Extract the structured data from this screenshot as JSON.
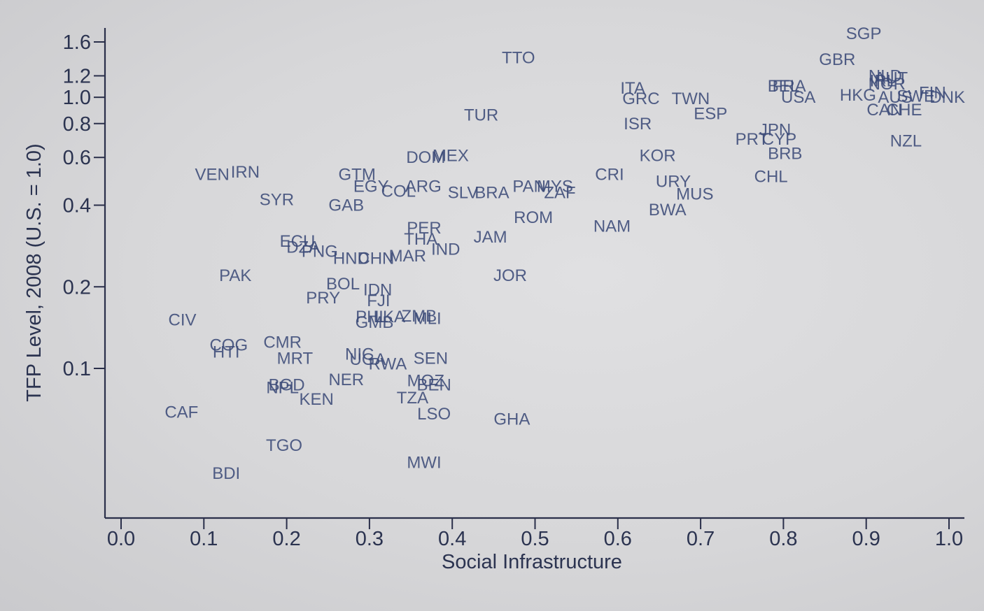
{
  "chart_data": {
    "type": "scatter",
    "xlabel": "Social Infrastructure",
    "ylabel": "TFP Level, 2008 (U.S. = 1.0)",
    "xlim": [
      -0.02,
      1.02
    ],
    "ylim": [
      0.034,
      1.9
    ],
    "y_scale": "log",
    "x_ticks": [
      "0.0",
      "0.1",
      "0.2",
      "0.3",
      "0.4",
      "0.5",
      "0.6",
      "0.7",
      "0.8",
      "0.9",
      "1.0"
    ],
    "y_ticks": [
      "0.1",
      "0.2",
      "0.4",
      "0.6",
      "0.8",
      "1.0",
      "1.2",
      "1.6"
    ],
    "grid": false,
    "points": [
      {
        "label": "SGP",
        "x": 0.897,
        "y": 1.72
      },
      {
        "label": "GBR",
        "x": 0.865,
        "y": 1.38
      },
      {
        "label": "NLD",
        "x": 0.923,
        "y": 1.2
      },
      {
        "label": "AUT",
        "x": 0.93,
        "y": 1.18
      },
      {
        "label": "IRL",
        "x": 0.92,
        "y": 1.15
      },
      {
        "label": "NOR",
        "x": 0.925,
        "y": 1.12
      },
      {
        "label": "BEL",
        "x": 0.8,
        "y": 1.1
      },
      {
        "label": "FRA",
        "x": 0.807,
        "y": 1.1
      },
      {
        "label": "USA",
        "x": 0.818,
        "y": 1.0
      },
      {
        "label": "HKG",
        "x": 0.89,
        "y": 1.02
      },
      {
        "label": "AUS",
        "x": 0.935,
        "y": 1.0
      },
      {
        "label": "SWE",
        "x": 0.96,
        "y": 1.01
      },
      {
        "label": "FIN",
        "x": 0.98,
        "y": 1.04
      },
      {
        "label": "DNK",
        "x": 0.998,
        "y": 1.0
      },
      {
        "label": "CAN",
        "x": 0.922,
        "y": 0.9
      },
      {
        "label": "CHE",
        "x": 0.946,
        "y": 0.9
      },
      {
        "label": "NZL",
        "x": 0.948,
        "y": 0.69
      },
      {
        "label": "TTO",
        "x": 0.48,
        "y": 1.4
      },
      {
        "label": "ITA",
        "x": 0.618,
        "y": 1.08
      },
      {
        "label": "GRC",
        "x": 0.628,
        "y": 0.99
      },
      {
        "label": "TWN",
        "x": 0.688,
        "y": 0.99
      },
      {
        "label": "ESP",
        "x": 0.712,
        "y": 0.87
      },
      {
        "label": "TUR",
        "x": 0.435,
        "y": 0.86
      },
      {
        "label": "ISR",
        "x": 0.624,
        "y": 0.8
      },
      {
        "label": "JPN",
        "x": 0.79,
        "y": 0.76
      },
      {
        "label": "PRT",
        "x": 0.762,
        "y": 0.7
      },
      {
        "label": "CYP",
        "x": 0.795,
        "y": 0.7
      },
      {
        "label": "BRB",
        "x": 0.802,
        "y": 0.62
      },
      {
        "label": "DOM",
        "x": 0.368,
        "y": 0.6
      },
      {
        "label": "MEX",
        "x": 0.398,
        "y": 0.61
      },
      {
        "label": "KOR",
        "x": 0.648,
        "y": 0.61
      },
      {
        "label": "VEN",
        "x": 0.11,
        "y": 0.52
      },
      {
        "label": "IRN",
        "x": 0.15,
        "y": 0.53
      },
      {
        "label": "GTM",
        "x": 0.285,
        "y": 0.52
      },
      {
        "label": "CRI",
        "x": 0.59,
        "y": 0.52
      },
      {
        "label": "URY",
        "x": 0.667,
        "y": 0.49
      },
      {
        "label": "CHL",
        "x": 0.785,
        "y": 0.51
      },
      {
        "label": "EGY",
        "x": 0.302,
        "y": 0.47
      },
      {
        "label": "ARG",
        "x": 0.365,
        "y": 0.47
      },
      {
        "label": "COL",
        "x": 0.335,
        "y": 0.45
      },
      {
        "label": "SLV",
        "x": 0.413,
        "y": 0.445
      },
      {
        "label": "BRA",
        "x": 0.448,
        "y": 0.445
      },
      {
        "label": "PAN",
        "x": 0.493,
        "y": 0.47
      },
      {
        "label": "MYS",
        "x": 0.524,
        "y": 0.47
      },
      {
        "label": "ZAF",
        "x": 0.53,
        "y": 0.445
      },
      {
        "label": "MUS",
        "x": 0.693,
        "y": 0.44
      },
      {
        "label": "SYR",
        "x": 0.188,
        "y": 0.42
      },
      {
        "label": "GAB",
        "x": 0.272,
        "y": 0.4
      },
      {
        "label": "BWA",
        "x": 0.66,
        "y": 0.385
      },
      {
        "label": "ROM",
        "x": 0.498,
        "y": 0.36
      },
      {
        "label": "NAM",
        "x": 0.593,
        "y": 0.335
      },
      {
        "label": "PER",
        "x": 0.366,
        "y": 0.33
      },
      {
        "label": "THA",
        "x": 0.362,
        "y": 0.3
      },
      {
        "label": "JAM",
        "x": 0.446,
        "y": 0.305
      },
      {
        "label": "ECU",
        "x": 0.213,
        "y": 0.295
      },
      {
        "label": "DZA",
        "x": 0.22,
        "y": 0.28
      },
      {
        "label": "PNG",
        "x": 0.24,
        "y": 0.27
      },
      {
        "label": "IND",
        "x": 0.392,
        "y": 0.275
      },
      {
        "label": "HND",
        "x": 0.278,
        "y": 0.255
      },
      {
        "label": "CHN",
        "x": 0.308,
        "y": 0.255
      },
      {
        "label": "MAR",
        "x": 0.346,
        "y": 0.26
      },
      {
        "label": "PAK",
        "x": 0.138,
        "y": 0.22
      },
      {
        "label": "JOR",
        "x": 0.47,
        "y": 0.22
      },
      {
        "label": "BOL",
        "x": 0.268,
        "y": 0.205
      },
      {
        "label": "IDN",
        "x": 0.31,
        "y": 0.195
      },
      {
        "label": "PRY",
        "x": 0.244,
        "y": 0.182
      },
      {
        "label": "FJI",
        "x": 0.311,
        "y": 0.178
      },
      {
        "label": "PHL",
        "x": 0.303,
        "y": 0.155
      },
      {
        "label": "LKA",
        "x": 0.324,
        "y": 0.155
      },
      {
        "label": "ZMB",
        "x": 0.36,
        "y": 0.156
      },
      {
        "label": "MLI",
        "x": 0.37,
        "y": 0.153
      },
      {
        "label": "GMB",
        "x": 0.306,
        "y": 0.148
      },
      {
        "label": "CIV",
        "x": 0.074,
        "y": 0.151
      },
      {
        "label": "CMR",
        "x": 0.195,
        "y": 0.125
      },
      {
        "label": "COG",
        "x": 0.13,
        "y": 0.122
      },
      {
        "label": "HTI",
        "x": 0.127,
        "y": 0.115
      },
      {
        "label": "MRT",
        "x": 0.21,
        "y": 0.109
      },
      {
        "label": "NIC",
        "x": 0.288,
        "y": 0.113
      },
      {
        "label": "UGA",
        "x": 0.298,
        "y": 0.108
      },
      {
        "label": "RWA",
        "x": 0.322,
        "y": 0.104
      },
      {
        "label": "SEN",
        "x": 0.374,
        "y": 0.109
      },
      {
        "label": "NER",
        "x": 0.272,
        "y": 0.091
      },
      {
        "label": "BGD",
        "x": 0.2,
        "y": 0.087
      },
      {
        "label": "NPL",
        "x": 0.195,
        "y": 0.085
      },
      {
        "label": "MOZ",
        "x": 0.368,
        "y": 0.09
      },
      {
        "label": "BEN",
        "x": 0.378,
        "y": 0.087
      },
      {
        "label": "KEN",
        "x": 0.236,
        "y": 0.077
      },
      {
        "label": "TZA",
        "x": 0.352,
        "y": 0.078
      },
      {
        "label": "CAF",
        "x": 0.073,
        "y": 0.069
      },
      {
        "label": "LSO",
        "x": 0.378,
        "y": 0.068
      },
      {
        "label": "GHA",
        "x": 0.472,
        "y": 0.065
      },
      {
        "label": "TGO",
        "x": 0.197,
        "y": 0.052
      },
      {
        "label": "MWI",
        "x": 0.366,
        "y": 0.045
      },
      {
        "label": "BDI",
        "x": 0.127,
        "y": 0.041
      }
    ]
  }
}
